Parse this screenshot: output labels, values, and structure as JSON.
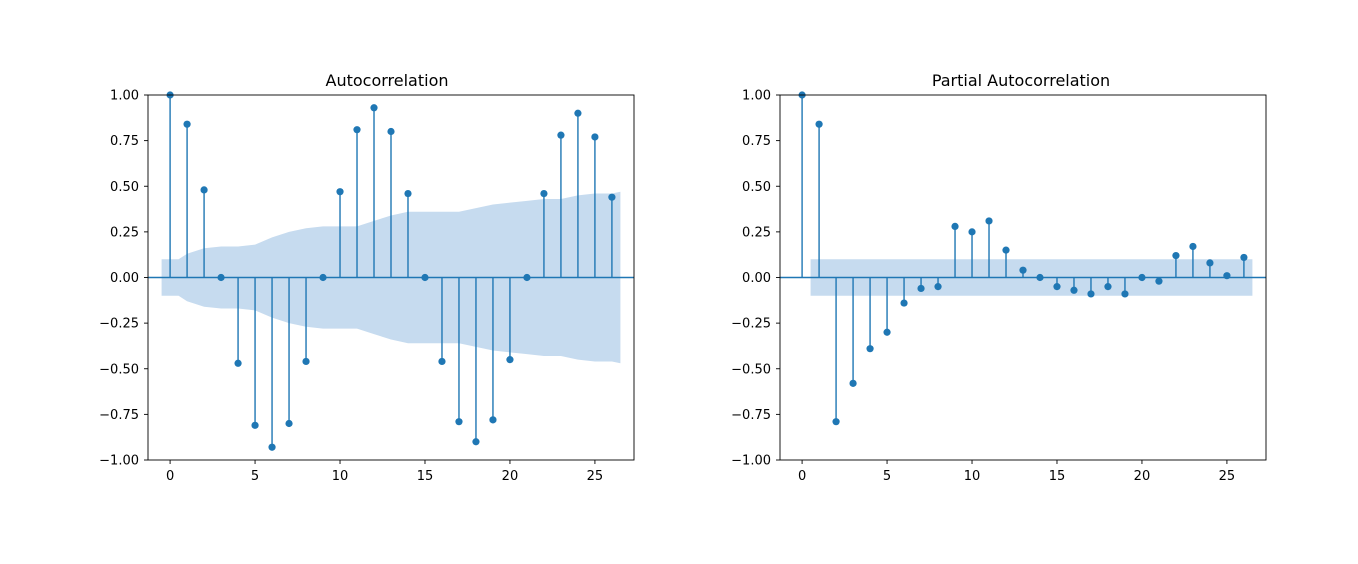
{
  "colors": {
    "stem": "#1f77b4",
    "band": "#c6dbef",
    "axis": "#000000",
    "background": "#ffffff"
  },
  "chart_data": [
    {
      "type": "stem",
      "title": "Autocorrelation",
      "xlabel": "",
      "ylabel": "",
      "xlim": [
        -1.3,
        27.3
      ],
      "ylim": [
        -1.0,
        1.0
      ],
      "xticks": [
        0,
        5,
        10,
        15,
        20,
        25
      ],
      "xtick_labels": [
        "0",
        "5",
        "10",
        "15",
        "20",
        "25"
      ],
      "yticks": [
        1.0,
        0.75,
        0.5,
        0.25,
        0.0,
        -0.25,
        -0.5,
        -0.75,
        -1.0
      ],
      "ytick_labels": [
        "1.00",
        "0.75",
        "0.50",
        "0.25",
        "0.00",
        "−0.25",
        "−0.50",
        "−0.75",
        "−1.00"
      ],
      "lags": [
        0,
        1,
        2,
        3,
        4,
        5,
        6,
        7,
        8,
        9,
        10,
        11,
        12,
        13,
        14,
        15,
        16,
        17,
        18,
        19,
        20,
        21,
        22,
        23,
        24,
        25,
        26
      ],
      "values": [
        1.0,
        0.84,
        0.48,
        0.0,
        -0.47,
        -0.81,
        -0.93,
        -0.8,
        -0.46,
        0.0,
        0.47,
        0.81,
        0.93,
        0.8,
        0.46,
        0.0,
        -0.46,
        -0.79,
        -0.9,
        -0.78,
        -0.45,
        0.0,
        0.46,
        0.78,
        0.9,
        0.77,
        0.44
      ],
      "confidence_band": {
        "lags": [
          -0.5,
          0.5,
          1,
          2,
          3,
          4,
          5,
          6,
          7,
          8,
          9,
          10,
          11,
          12,
          13,
          14,
          15,
          16,
          17,
          18,
          19,
          20,
          21,
          22,
          23,
          24,
          25,
          26,
          26.5
        ],
        "upper": [
          0.1,
          0.1,
          0.13,
          0.16,
          0.17,
          0.17,
          0.18,
          0.22,
          0.25,
          0.27,
          0.28,
          0.28,
          0.28,
          0.31,
          0.34,
          0.36,
          0.36,
          0.36,
          0.36,
          0.38,
          0.4,
          0.41,
          0.42,
          0.43,
          0.43,
          0.45,
          0.46,
          0.46,
          0.47
        ],
        "lower": [
          -0.1,
          -0.1,
          -0.13,
          -0.16,
          -0.17,
          -0.17,
          -0.18,
          -0.22,
          -0.25,
          -0.27,
          -0.28,
          -0.28,
          -0.28,
          -0.31,
          -0.34,
          -0.36,
          -0.36,
          -0.36,
          -0.36,
          -0.38,
          -0.4,
          -0.41,
          -0.42,
          -0.43,
          -0.43,
          -0.45,
          -0.46,
          -0.46,
          -0.47
        ]
      }
    },
    {
      "type": "stem",
      "title": "Partial Autocorrelation",
      "xlabel": "",
      "ylabel": "",
      "xlim": [
        -1.3,
        27.3
      ],
      "ylim": [
        -1.0,
        1.0
      ],
      "xticks": [
        0,
        5,
        10,
        15,
        20,
        25
      ],
      "xtick_labels": [
        "0",
        "5",
        "10",
        "15",
        "20",
        "25"
      ],
      "yticks": [
        1.0,
        0.75,
        0.5,
        0.25,
        0.0,
        -0.25,
        -0.5,
        -0.75,
        -1.0
      ],
      "ytick_labels": [
        "1.00",
        "0.75",
        "0.50",
        "0.25",
        "0.00",
        "−0.25",
        "−0.50",
        "−0.75",
        "−1.00"
      ],
      "lags": [
        0,
        1,
        2,
        3,
        4,
        5,
        6,
        7,
        8,
        9,
        10,
        11,
        12,
        13,
        14,
        15,
        16,
        17,
        18,
        19,
        20,
        21,
        22,
        23,
        24,
        25,
        26
      ],
      "values": [
        1.0,
        0.84,
        -0.79,
        -0.58,
        -0.39,
        -0.3,
        -0.14,
        -0.06,
        -0.05,
        0.28,
        0.25,
        0.31,
        0.15,
        0.04,
        0.0,
        -0.05,
        -0.07,
        -0.09,
        -0.05,
        -0.09,
        0.0,
        -0.02,
        0.12,
        0.17,
        0.08,
        0.01,
        0.11
      ],
      "confidence_band": {
        "lags": [
          0.5,
          26.5
        ],
        "upper": [
          0.1,
          0.1
        ],
        "lower": [
          -0.1,
          -0.1
        ]
      }
    }
  ]
}
